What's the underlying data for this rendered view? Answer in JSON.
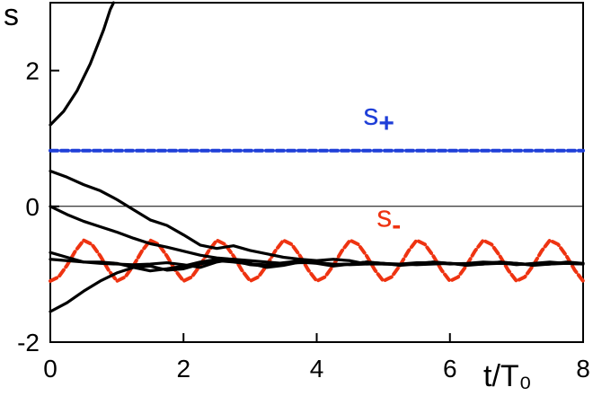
{
  "chart_data": {
    "type": "line",
    "xlabel": "t/T₀",
    "ylabel": "s",
    "xlim": [
      0,
      8
    ],
    "ylim": [
      -2,
      3
    ],
    "x_ticks": [
      0,
      2,
      4,
      6,
      8
    ],
    "y_ticks": [
      -2,
      0,
      2
    ],
    "x_tick_labels": [
      "0",
      "2",
      "4",
      "6",
      "8"
    ],
    "y_tick_labels": [
      "-2",
      "0",
      "2"
    ],
    "zero_line": 0,
    "grid": false,
    "annotations": [
      {
        "text": "s+",
        "color": "#1f3fd8",
        "x": 4.7,
        "y": 1.2
      },
      {
        "text": "s-",
        "color": "#ee3311",
        "x": 4.9,
        "y": -0.3
      }
    ],
    "series": [
      {
        "name": "s+",
        "style": "dashed",
        "color": "#1f3fd8",
        "x": [
          0,
          8
        ],
        "y": [
          0.82,
          0.82
        ]
      },
      {
        "name": "s-",
        "style": "dashed",
        "color": "#ee3311",
        "x": [
          0,
          0.125,
          0.25,
          0.375,
          0.5,
          0.625,
          0.75,
          0.875,
          1,
          1.125,
          1.25,
          1.375,
          1.5,
          1.625,
          1.75,
          1.875,
          2,
          2.125,
          2.25,
          2.375,
          2.5,
          2.625,
          2.75,
          2.875,
          3,
          3.125,
          3.25,
          3.375,
          3.5,
          3.625,
          3.75,
          3.875,
          4,
          4.125,
          4.25,
          4.375,
          4.5,
          4.625,
          4.75,
          4.875,
          5,
          5.125,
          5.25,
          5.375,
          5.5,
          5.625,
          5.75,
          5.875,
          6,
          6.125,
          6.25,
          6.375,
          6.5,
          6.625,
          6.75,
          6.875,
          7,
          7.125,
          7.25,
          7.375,
          7.5,
          7.625,
          7.75,
          7.875,
          8
        ],
        "y": [
          -1.1,
          -1.04,
          -0.87,
          -0.66,
          -0.5,
          -0.56,
          -0.73,
          -0.94,
          -1.1,
          -1.04,
          -0.87,
          -0.66,
          -0.5,
          -0.56,
          -0.73,
          -0.94,
          -1.1,
          -1.04,
          -0.87,
          -0.66,
          -0.5,
          -0.56,
          -0.73,
          -0.94,
          -1.1,
          -1.04,
          -0.87,
          -0.66,
          -0.5,
          -0.56,
          -0.73,
          -0.94,
          -1.1,
          -1.04,
          -0.87,
          -0.66,
          -0.5,
          -0.56,
          -0.73,
          -0.94,
          -1.1,
          -1.04,
          -0.87,
          -0.66,
          -0.5,
          -0.56,
          -0.73,
          -0.94,
          -1.1,
          -1.04,
          -0.87,
          -0.66,
          -0.5,
          -0.56,
          -0.73,
          -0.94,
          -1.1,
          -1.04,
          -0.87,
          -0.66,
          -0.5,
          -0.56,
          -0.73,
          -0.94,
          -1.1
        ]
      },
      {
        "name": "",
        "style": "solid",
        "color": "#000000",
        "x": [
          0,
          0.2,
          0.4,
          0.6,
          0.8,
          0.9,
          0.95
        ],
        "y": [
          1.2,
          1.4,
          1.7,
          2.1,
          2.6,
          2.9,
          3.0
        ]
      },
      {
        "name": "",
        "style": "solid",
        "color": "#000000",
        "x": [
          0,
          0.25,
          0.5,
          0.75,
          1,
          1.25,
          1.5,
          1.75,
          2,
          2.25,
          2.5,
          2.75,
          3,
          3.25,
          3.5,
          3.75,
          4,
          4.25,
          4.5,
          4.75,
          5,
          5.25,
          5.5,
          5.75,
          6,
          6.25,
          6.5,
          6.75,
          7,
          7.25,
          7.5,
          7.75,
          8
        ],
        "y": [
          0.52,
          0.43,
          0.32,
          0.23,
          0.1,
          -0.05,
          -0.2,
          -0.28,
          -0.42,
          -0.57,
          -0.62,
          -0.58,
          -0.65,
          -0.7,
          -0.75,
          -0.78,
          -0.8,
          -0.78,
          -0.8,
          -0.85,
          -0.85,
          -0.85,
          -0.83,
          -0.83,
          -0.85,
          -0.84,
          -0.82,
          -0.83,
          -0.86,
          -0.84,
          -0.82,
          -0.84,
          -0.85
        ]
      },
      {
        "name": "",
        "style": "solid",
        "color": "#000000",
        "x": [
          0,
          0.25,
          0.5,
          0.75,
          1,
          1.25,
          1.5,
          1.75,
          2,
          2.25,
          2.5,
          2.75,
          3,
          3.25,
          3.5,
          3.75,
          4,
          4.25,
          4.5,
          4.75,
          5,
          5.25,
          5.5,
          5.75,
          6,
          6.25,
          6.5,
          6.75,
          7,
          7.25,
          7.5,
          7.75,
          8
        ],
        "y": [
          0.0,
          -0.12,
          -0.22,
          -0.3,
          -0.38,
          -0.47,
          -0.55,
          -0.6,
          -0.66,
          -0.72,
          -0.76,
          -0.78,
          -0.8,
          -0.82,
          -0.84,
          -0.83,
          -0.83,
          -0.85,
          -0.86,
          -0.85,
          -0.84,
          -0.85,
          -0.86,
          -0.85,
          -0.84,
          -0.85,
          -0.85,
          -0.84,
          -0.85,
          -0.86,
          -0.85,
          -0.84,
          -0.85
        ]
      },
      {
        "name": "",
        "style": "solid",
        "color": "#000000",
        "x": [
          0,
          0.25,
          0.5,
          0.75,
          1,
          1.25,
          1.5,
          1.75,
          2,
          2.25,
          2.5,
          2.75,
          3,
          3.25,
          3.5,
          3.75,
          4,
          4.25,
          4.5,
          4.75,
          5,
          5.25,
          5.5,
          5.75,
          6,
          6.25,
          6.5,
          6.75,
          7,
          7.25,
          7.5,
          7.75,
          8
        ],
        "y": [
          -0.68,
          -0.75,
          -0.82,
          -0.84,
          -0.85,
          -0.86,
          -0.85,
          -0.83,
          -0.86,
          -0.9,
          -0.82,
          -0.78,
          -0.84,
          -0.9,
          -0.87,
          -0.82,
          -0.84,
          -0.88,
          -0.85,
          -0.82,
          -0.85,
          -0.86,
          -0.84,
          -0.83,
          -0.84,
          -0.86,
          -0.85,
          -0.83,
          -0.84,
          -0.86,
          -0.85,
          -0.83,
          -0.84
        ]
      },
      {
        "name": "",
        "style": "solid",
        "color": "#000000",
        "x": [
          0,
          0.25,
          0.5,
          0.75,
          1,
          1.25,
          1.5,
          1.75,
          2,
          2.25,
          2.5,
          2.75,
          3,
          3.25,
          3.5,
          3.75,
          4,
          4.25,
          4.5,
          4.75,
          5,
          5.25,
          5.5,
          5.75,
          6,
          6.25,
          6.5,
          6.75,
          7,
          7.25,
          7.5,
          7.75,
          8
        ],
        "y": [
          -0.78,
          -0.8,
          -0.82,
          -0.82,
          -0.84,
          -0.9,
          -0.95,
          -0.92,
          -0.88,
          -0.82,
          -0.78,
          -0.8,
          -0.86,
          -0.88,
          -0.84,
          -0.8,
          -0.82,
          -0.86,
          -0.85,
          -0.82,
          -0.84,
          -0.87,
          -0.85,
          -0.82,
          -0.84,
          -0.87,
          -0.85,
          -0.82,
          -0.84,
          -0.87,
          -0.85,
          -0.82,
          -0.84
        ]
      },
      {
        "name": "",
        "style": "solid",
        "color": "#000000",
        "x": [
          0,
          0.25,
          0.5,
          0.75,
          1,
          1.25,
          1.5,
          1.75,
          2,
          2.25,
          2.5,
          2.75,
          3,
          3.25,
          3.5,
          3.75,
          4,
          4.25,
          4.5,
          4.75,
          5,
          5.25,
          5.5,
          5.75,
          6,
          6.25,
          6.5,
          6.75,
          7,
          7.25,
          7.5,
          7.75,
          8
        ],
        "y": [
          -1.55,
          -1.42,
          -1.25,
          -1.1,
          -0.98,
          -0.9,
          -0.88,
          -0.94,
          -0.92,
          -0.85,
          -0.8,
          -0.82,
          -0.85,
          -0.86,
          -0.83,
          -0.8,
          -0.83,
          -0.86,
          -0.85,
          -0.82,
          -0.84,
          -0.86,
          -0.84,
          -0.82,
          -0.84,
          -0.86,
          -0.84,
          -0.82,
          -0.84,
          -0.86,
          -0.84,
          -0.83,
          -0.84
        ]
      }
    ]
  }
}
